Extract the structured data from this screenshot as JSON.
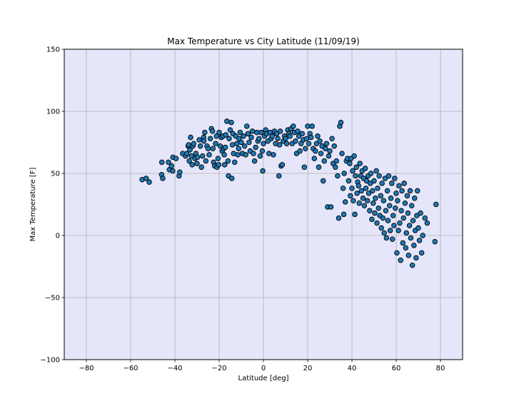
{
  "chart_data": {
    "type": "scatter",
    "title": "Max Temperature vs City Latitude (11/09/19)",
    "xlabel": "Latitude [deg]",
    "ylabel": "Max Temperature [F]",
    "xlim": [
      -90,
      90
    ],
    "ylim": [
      -100,
      150
    ],
    "xticks": [
      -80,
      -60,
      -40,
      -20,
      0,
      20,
      40,
      60,
      80
    ],
    "yticks": [
      -100,
      -50,
      0,
      50,
      100,
      150
    ],
    "xtick_labels": [
      "−80",
      "−60",
      "−40",
      "−20",
      "0",
      "20",
      "40",
      "60",
      "80"
    ],
    "ytick_labels": [
      "−100",
      "−50",
      "0",
      "50",
      "100",
      "150"
    ],
    "grid": true,
    "colors": {
      "background": "#e6e6fa",
      "marker_fill": "#1f77b4",
      "marker_edge": "#000000",
      "grid": "#b0b0b0"
    },
    "points": [
      [
        -54.8,
        45
      ],
      [
        -53,
        46
      ],
      [
        -51.6,
        43
      ],
      [
        -46,
        49
      ],
      [
        -45.5,
        46
      ],
      [
        -45.9,
        59
      ],
      [
        -42.9,
        59
      ],
      [
        -42.5,
        53
      ],
      [
        -41.5,
        56
      ],
      [
        -41,
        52
      ],
      [
        -40.9,
        63
      ],
      [
        -39.5,
        62
      ],
      [
        -38.1,
        48
      ],
      [
        -37.8,
        51
      ],
      [
        -36.5,
        66
      ],
      [
        -35.2,
        64
      ],
      [
        -34.6,
        66
      ],
      [
        -34,
        72
      ],
      [
        -33.8,
        73
      ],
      [
        -33.5,
        60
      ],
      [
        -33.2,
        69
      ],
      [
        -32.9,
        79
      ],
      [
        -32.5,
        64
      ],
      [
        -32.2,
        57
      ],
      [
        -31.9,
        72
      ],
      [
        -31.5,
        74
      ],
      [
        -31,
        62
      ],
      [
        -30.5,
        66
      ],
      [
        -30,
        58
      ],
      [
        -29.8,
        63
      ],
      [
        -29,
        77
      ],
      [
        -28.5,
        72
      ],
      [
        -28,
        55
      ],
      [
        -27.5,
        64
      ],
      [
        -27,
        79
      ],
      [
        -26.9,
        76
      ],
      [
        -26.5,
        83
      ],
      [
        -26,
        60
      ],
      [
        -25.5,
        72
      ],
      [
        -25,
        70
      ],
      [
        -24.5,
        65
      ],
      [
        -24,
        78
      ],
      [
        -23.5,
        86
      ],
      [
        -23,
        84
      ],
      [
        -22.8,
        70
      ],
      [
        -22.5,
        59
      ],
      [
        -22,
        56
      ],
      [
        -21.6,
        74
      ],
      [
        -21.2,
        80
      ],
      [
        -21,
        55
      ],
      [
        -20.5,
        62
      ],
      [
        -20.2,
        57
      ],
      [
        -20,
        83
      ],
      [
        -19.5,
        72
      ],
      [
        -19,
        79
      ],
      [
        -18.6,
        68
      ],
      [
        -18.2,
        80
      ],
      [
        -18,
        70
      ],
      [
        -17.7,
        65
      ],
      [
        -17.5,
        57
      ],
      [
        -17.2,
        71
      ],
      [
        -17,
        81
      ],
      [
        -16.5,
        92
      ],
      [
        -16,
        60
      ],
      [
        -15.8,
        48
      ],
      [
        -15.5,
        78
      ],
      [
        -15,
        85
      ],
      [
        -14.5,
        91
      ],
      [
        -14.3,
        46
      ],
      [
        -14,
        73
      ],
      [
        -13.8,
        82
      ],
      [
        -13.5,
        66
      ],
      [
        -13,
        59
      ],
      [
        -12.5,
        80
      ],
      [
        -12,
        74
      ],
      [
        -11.6,
        65
      ],
      [
        -11.2,
        70
      ],
      [
        -11,
        78
      ],
      [
        -10.5,
        83
      ],
      [
        -10,
        75
      ],
      [
        -9.5,
        66
      ],
      [
        -9,
        80
      ],
      [
        -8.5,
        72
      ],
      [
        -8,
        65
      ],
      [
        -7.5,
        88
      ],
      [
        -7,
        82
      ],
      [
        -6.5,
        75
      ],
      [
        -6,
        68
      ],
      [
        -5.5,
        79
      ],
      [
        -5,
        84
      ],
      [
        -4.5,
        66
      ],
      [
        -4,
        60
      ],
      [
        -3.5,
        71
      ],
      [
        -3,
        83
      ],
      [
        -2.5,
        76
      ],
      [
        -2,
        78
      ],
      [
        -1.5,
        64
      ],
      [
        -1,
        83
      ],
      [
        -0.5,
        68
      ],
      [
        -0.3,
        52
      ],
      [
        0,
        74
      ],
      [
        0.5,
        80
      ],
      [
        1,
        85
      ],
      [
        1.5,
        82
      ],
      [
        2,
        76
      ],
      [
        2.5,
        66
      ],
      [
        3,
        83
      ],
      [
        3.5,
        78
      ],
      [
        4,
        80
      ],
      [
        4.5,
        65
      ],
      [
        5,
        84
      ],
      [
        5.5,
        74
      ],
      [
        6,
        82
      ],
      [
        6.5,
        78
      ],
      [
        7,
        48
      ],
      [
        7.3,
        73
      ],
      [
        7.6,
        84
      ],
      [
        8,
        56
      ],
      [
        8.5,
        57
      ],
      [
        9,
        76
      ],
      [
        9.5,
        80
      ],
      [
        10,
        78
      ],
      [
        10.5,
        74
      ],
      [
        11,
        85
      ],
      [
        11.5,
        82
      ],
      [
        12,
        80
      ],
      [
        12.5,
        86
      ],
      [
        13,
        74
      ],
      [
        13.5,
        88
      ],
      [
        14,
        83
      ],
      [
        14.5,
        76
      ],
      [
        15,
        66
      ],
      [
        15.5,
        84
      ],
      [
        16,
        80
      ],
      [
        16.5,
        68
      ],
      [
        17,
        74
      ],
      [
        17.5,
        82
      ],
      [
        18,
        77
      ],
      [
        18.5,
        55
      ],
      [
        19,
        70
      ],
      [
        19.5,
        78
      ],
      [
        20,
        88
      ],
      [
        20.5,
        74
      ],
      [
        21,
        82
      ],
      [
        21.5,
        79
      ],
      [
        22,
        88
      ],
      [
        22.5,
        70
      ],
      [
        23,
        62
      ],
      [
        23.5,
        68
      ],
      [
        24,
        74
      ],
      [
        24.5,
        80
      ],
      [
        25,
        55
      ],
      [
        25.5,
        76
      ],
      [
        26,
        66
      ],
      [
        26.5,
        72
      ],
      [
        27,
        44
      ],
      [
        27.5,
        60
      ],
      [
        28,
        70
      ],
      [
        28.5,
        74
      ],
      [
        29,
        23
      ],
      [
        29.5,
        64
      ],
      [
        30,
        68
      ],
      [
        30.5,
        23
      ],
      [
        31,
        78
      ],
      [
        31.5,
        58
      ],
      [
        32,
        72
      ],
      [
        32.5,
        55
      ],
      [
        33,
        60
      ],
      [
        33.5,
        48
      ],
      [
        34,
        14
      ],
      [
        34.5,
        88
      ],
      [
        35,
        91
      ],
      [
        35.5,
        66
      ],
      [
        36,
        38
      ],
      [
        36.3,
        17
      ],
      [
        36.5,
        50
      ],
      [
        37,
        27
      ],
      [
        37.5,
        60
      ],
      [
        38,
        62
      ],
      [
        38.5,
        44
      ],
      [
        39,
        58
      ],
      [
        39.3,
        32
      ],
      [
        39.6,
        62
      ],
      [
        40,
        38
      ],
      [
        40.3,
        52
      ],
      [
        40.6,
        28
      ],
      [
        41,
        64
      ],
      [
        41.3,
        17
      ],
      [
        41.6,
        48
      ],
      [
        42,
        55
      ],
      [
        42.3,
        34
      ],
      [
        42.6,
        43
      ],
      [
        43,
        40
      ],
      [
        43.3,
        26
      ],
      [
        43.6,
        58
      ],
      [
        44,
        48
      ],
      [
        44.3,
        36
      ],
      [
        44.6,
        52
      ],
      [
        45,
        30
      ],
      [
        45.3,
        46
      ],
      [
        45.6,
        24
      ],
      [
        46,
        54
      ],
      [
        46.3,
        38
      ],
      [
        46.6,
        44
      ],
      [
        47,
        28
      ],
      [
        47.3,
        48
      ],
      [
        47.6,
        34
      ],
      [
        48,
        20
      ],
      [
        48.3,
        42
      ],
      [
        48.6,
        50
      ],
      [
        49,
        13
      ],
      [
        49.3,
        36
      ],
      [
        49.6,
        26
      ],
      [
        50,
        44
      ],
      [
        50.3,
        18
      ],
      [
        50.6,
        30
      ],
      [
        51,
        52
      ],
      [
        51.3,
        10
      ],
      [
        51.6,
        38
      ],
      [
        52,
        22
      ],
      [
        52.3,
        48
      ],
      [
        52.6,
        16
      ],
      [
        53,
        32
      ],
      [
        53.3,
        6
      ],
      [
        53.6,
        42
      ],
      [
        54,
        14
      ],
      [
        54.3,
        28
      ],
      [
        54.6,
        2
      ],
      [
        55,
        46
      ],
      [
        55.3,
        20
      ],
      [
        55.6,
        -2
      ],
      [
        56,
        36
      ],
      [
        56.3,
        12
      ],
      [
        56.6,
        48
      ],
      [
        57,
        24
      ],
      [
        57.3,
        4
      ],
      [
        57.6,
        30
      ],
      [
        58,
        42
      ],
      [
        58.3,
        -3
      ],
      [
        58.6,
        16
      ],
      [
        59,
        8
      ],
      [
        59.3,
        46
      ],
      [
        59.6,
        22
      ],
      [
        60,
        34
      ],
      [
        60.3,
        -14
      ],
      [
        60.6,
        28
      ],
      [
        61,
        4
      ],
      [
        61.3,
        40
      ],
      [
        61.6,
        10
      ],
      [
        62,
        -20
      ],
      [
        62.3,
        20
      ],
      [
        62.6,
        36
      ],
      [
        63,
        -6
      ],
      [
        63.3,
        14
      ],
      [
        63.6,
        42
      ],
      [
        64,
        26
      ],
      [
        64.3,
        -10
      ],
      [
        64.6,
        2
      ],
      [
        65,
        32
      ],
      [
        65.3,
        18
      ],
      [
        65.6,
        -16
      ],
      [
        66,
        8
      ],
      [
        66.3,
        36
      ],
      [
        66.6,
        -2
      ],
      [
        67,
        24
      ],
      [
        67.3,
        -24
      ],
      [
        67.6,
        12
      ],
      [
        68,
        -8
      ],
      [
        68.3,
        30
      ],
      [
        68.6,
        4
      ],
      [
        69,
        -18
      ],
      [
        69.3,
        16
      ],
      [
        69.6,
        36
      ],
      [
        70,
        6
      ],
      [
        70.5,
        -4
      ],
      [
        71,
        18
      ],
      [
        71.5,
        -14
      ],
      [
        72,
        0
      ],
      [
        73,
        14
      ],
      [
        74,
        10
      ],
      [
        77.5,
        -5
      ],
      [
        78,
        25
      ]
    ]
  }
}
